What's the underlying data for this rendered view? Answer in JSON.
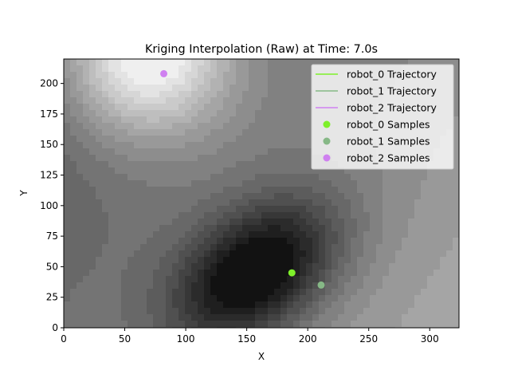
{
  "chart_data": {
    "type": "scatter",
    "title": "Kriging Interpolation (Raw) at Time: 7.0s",
    "xlabel": "X",
    "ylabel": "Y",
    "xlim": [
      0,
      324
    ],
    "ylim": [
      0,
      220
    ],
    "xticks": [
      0,
      50,
      100,
      150,
      200,
      250,
      300
    ],
    "yticks": [
      0,
      25,
      50,
      75,
      100,
      125,
      150,
      175,
      200
    ],
    "grid": false,
    "legend_position": "top-right",
    "background": {
      "type": "filled-contour",
      "colormap": "gray",
      "low_center": [
        158,
        45
      ],
      "high_center": [
        68,
        228
      ]
    },
    "series": [
      {
        "name": "robot_0 Trajectory",
        "kind": "line",
        "color": "#7ef02a",
        "points": []
      },
      {
        "name": "robot_1 Trajectory",
        "kind": "line",
        "color": "#86b886",
        "points": []
      },
      {
        "name": "robot_2 Trajectory",
        "kind": "line",
        "color": "#cf80f0",
        "points": []
      },
      {
        "name": "robot_0 Samples",
        "kind": "scatter",
        "color": "#7ef02a",
        "points": [
          [
            187,
            45
          ]
        ]
      },
      {
        "name": "robot_1 Samples",
        "kind": "scatter",
        "color": "#86b886",
        "points": [
          [
            211,
            35
          ]
        ]
      },
      {
        "name": "robot_2 Samples",
        "kind": "scatter",
        "color": "#cf80f0",
        "points": [
          [
            82,
            208
          ]
        ]
      }
    ]
  }
}
